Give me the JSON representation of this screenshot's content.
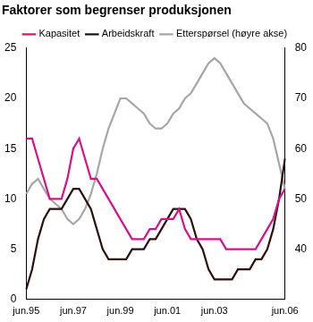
{
  "chart_data": {
    "type": "line",
    "title": "Faktorer som begrenser produksjonen",
    "categories": [
      "jun.95",
      null,
      null,
      null,
      null,
      null,
      null,
      null,
      "jun.97",
      null,
      null,
      null,
      null,
      null,
      null,
      null,
      "jun.99",
      null,
      null,
      null,
      null,
      null,
      null,
      null,
      "jun.01",
      null,
      null,
      null,
      null,
      null,
      null,
      null,
      "jun.03",
      null,
      null,
      null,
      null,
      null,
      null,
      null,
      null,
      null,
      null,
      null,
      "jun.06"
    ],
    "series": [
      {
        "name": "Kapasitet",
        "color": "#d6128a",
        "values": [
          16,
          16,
          14,
          12,
          10,
          10,
          10,
          12,
          15,
          16,
          14,
          12,
          12,
          11,
          10,
          9,
          8,
          7,
          6,
          6,
          6,
          7,
          7,
          8,
          8,
          8,
          9,
          7,
          6,
          6,
          6,
          6,
          6,
          6,
          5,
          5,
          5,
          5,
          5,
          5,
          6,
          7,
          8,
          10,
          11
        ]
      },
      {
        "name": "Arbeidskraft",
        "color": "#2b0f0f",
        "values": [
          1,
          3,
          6,
          8,
          9,
          9,
          9,
          10,
          11,
          11,
          10,
          9,
          7,
          5,
          4,
          4,
          4,
          4,
          5,
          5,
          5,
          6,
          6,
          7,
          8,
          9,
          9,
          9,
          8,
          6,
          5,
          3,
          2,
          2,
          2,
          2,
          3,
          3,
          3,
          4,
          4,
          5,
          7,
          10,
          14
        ]
      },
      {
        "name": "Etterspørsel (høyre akse)",
        "color": "#a6a6a6",
        "axis": "y2",
        "values": [
          51,
          53,
          54,
          52,
          50,
          49,
          48,
          46,
          45,
          46,
          48,
          51,
          55,
          60,
          64,
          67,
          70,
          70,
          69,
          68,
          67,
          65,
          64,
          64,
          65,
          67,
          68,
          70,
          71,
          73,
          75,
          77,
          78,
          77,
          75,
          73,
          71,
          69,
          68,
          67,
          66,
          65,
          62,
          57,
          52
        ]
      }
    ],
    "ylim": [
      0,
      25
    ],
    "yticks": [
      0,
      5,
      10,
      15,
      20,
      25
    ],
    "y2lim": [
      30,
      80
    ],
    "y2ticks": [
      40,
      50,
      60,
      70,
      80
    ],
    "grid": false,
    "legend": "top"
  }
}
